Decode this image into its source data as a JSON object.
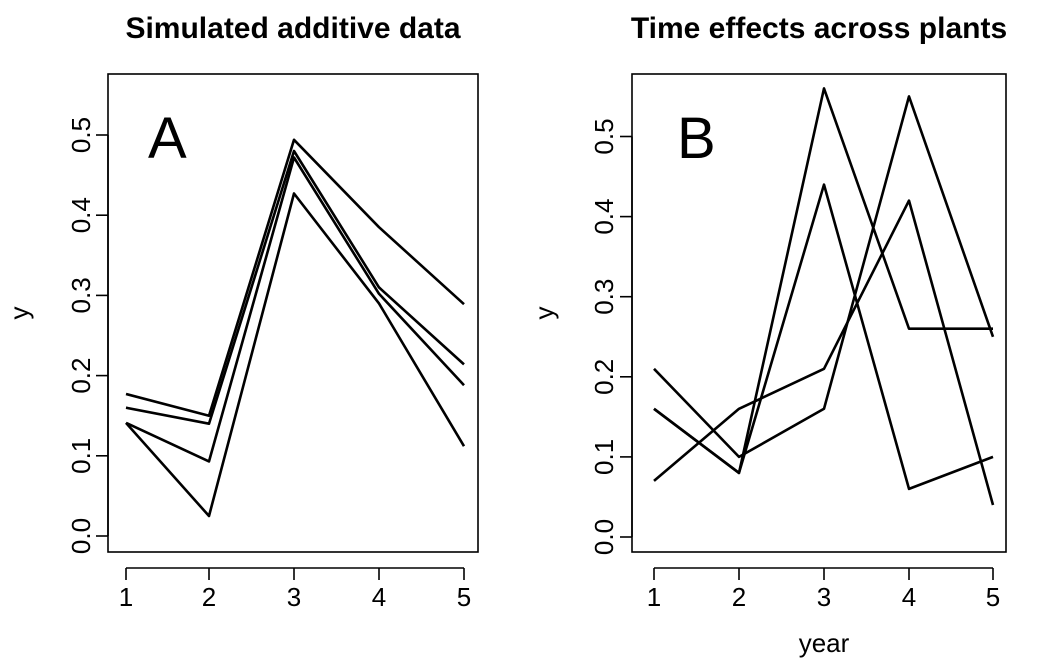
{
  "chart_data": [
    {
      "type": "line",
      "title": "Simulated additive data",
      "panel_label": "A",
      "xlabel": "",
      "ylabel": "y",
      "x": [
        1,
        2,
        3,
        4,
        5
      ],
      "xticks": [
        "1",
        "2",
        "3",
        "4",
        "5"
      ],
      "yticks": [
        "0.0",
        "0.1",
        "0.2",
        "0.3",
        "0.4",
        "0.5"
      ],
      "ylim": [
        0.0,
        0.55
      ],
      "line_color": "#000000",
      "series": [
        {
          "values": [
            0.177,
            0.15,
            0.494,
            0.385,
            0.289
          ]
        },
        {
          "values": [
            0.16,
            0.14,
            0.48,
            0.31,
            0.214
          ]
        },
        {
          "values": [
            0.141,
            0.093,
            0.472,
            0.302,
            0.188
          ]
        },
        {
          "values": [
            0.141,
            0.025,
            0.427,
            0.29,
            0.112
          ]
        }
      ]
    },
    {
      "type": "line",
      "title": "Time effects across plants",
      "panel_label": "B",
      "xlabel": "year",
      "ylabel": "y",
      "x": [
        1,
        2,
        3,
        4,
        5
      ],
      "xticks": [
        "1",
        "2",
        "3",
        "4",
        "5"
      ],
      "yticks": [
        "0.0",
        "0.1",
        "0.2",
        "0.3",
        "0.4",
        "0.5"
      ],
      "ylim": [
        0.0,
        0.56
      ],
      "line_color": "#000000",
      "series": [
        {
          "values": [
            0.21,
            0.1,
            0.16,
            0.55,
            0.25
          ]
        },
        {
          "values": [
            0.16,
            0.08,
            0.56,
            0.26,
            0.26
          ]
        },
        {
          "values": [
            0.16,
            0.08,
            0.44,
            0.06,
            0.1
          ]
        },
        {
          "values": [
            0.07,
            0.16,
            0.21,
            0.42,
            0.04
          ]
        }
      ]
    }
  ]
}
